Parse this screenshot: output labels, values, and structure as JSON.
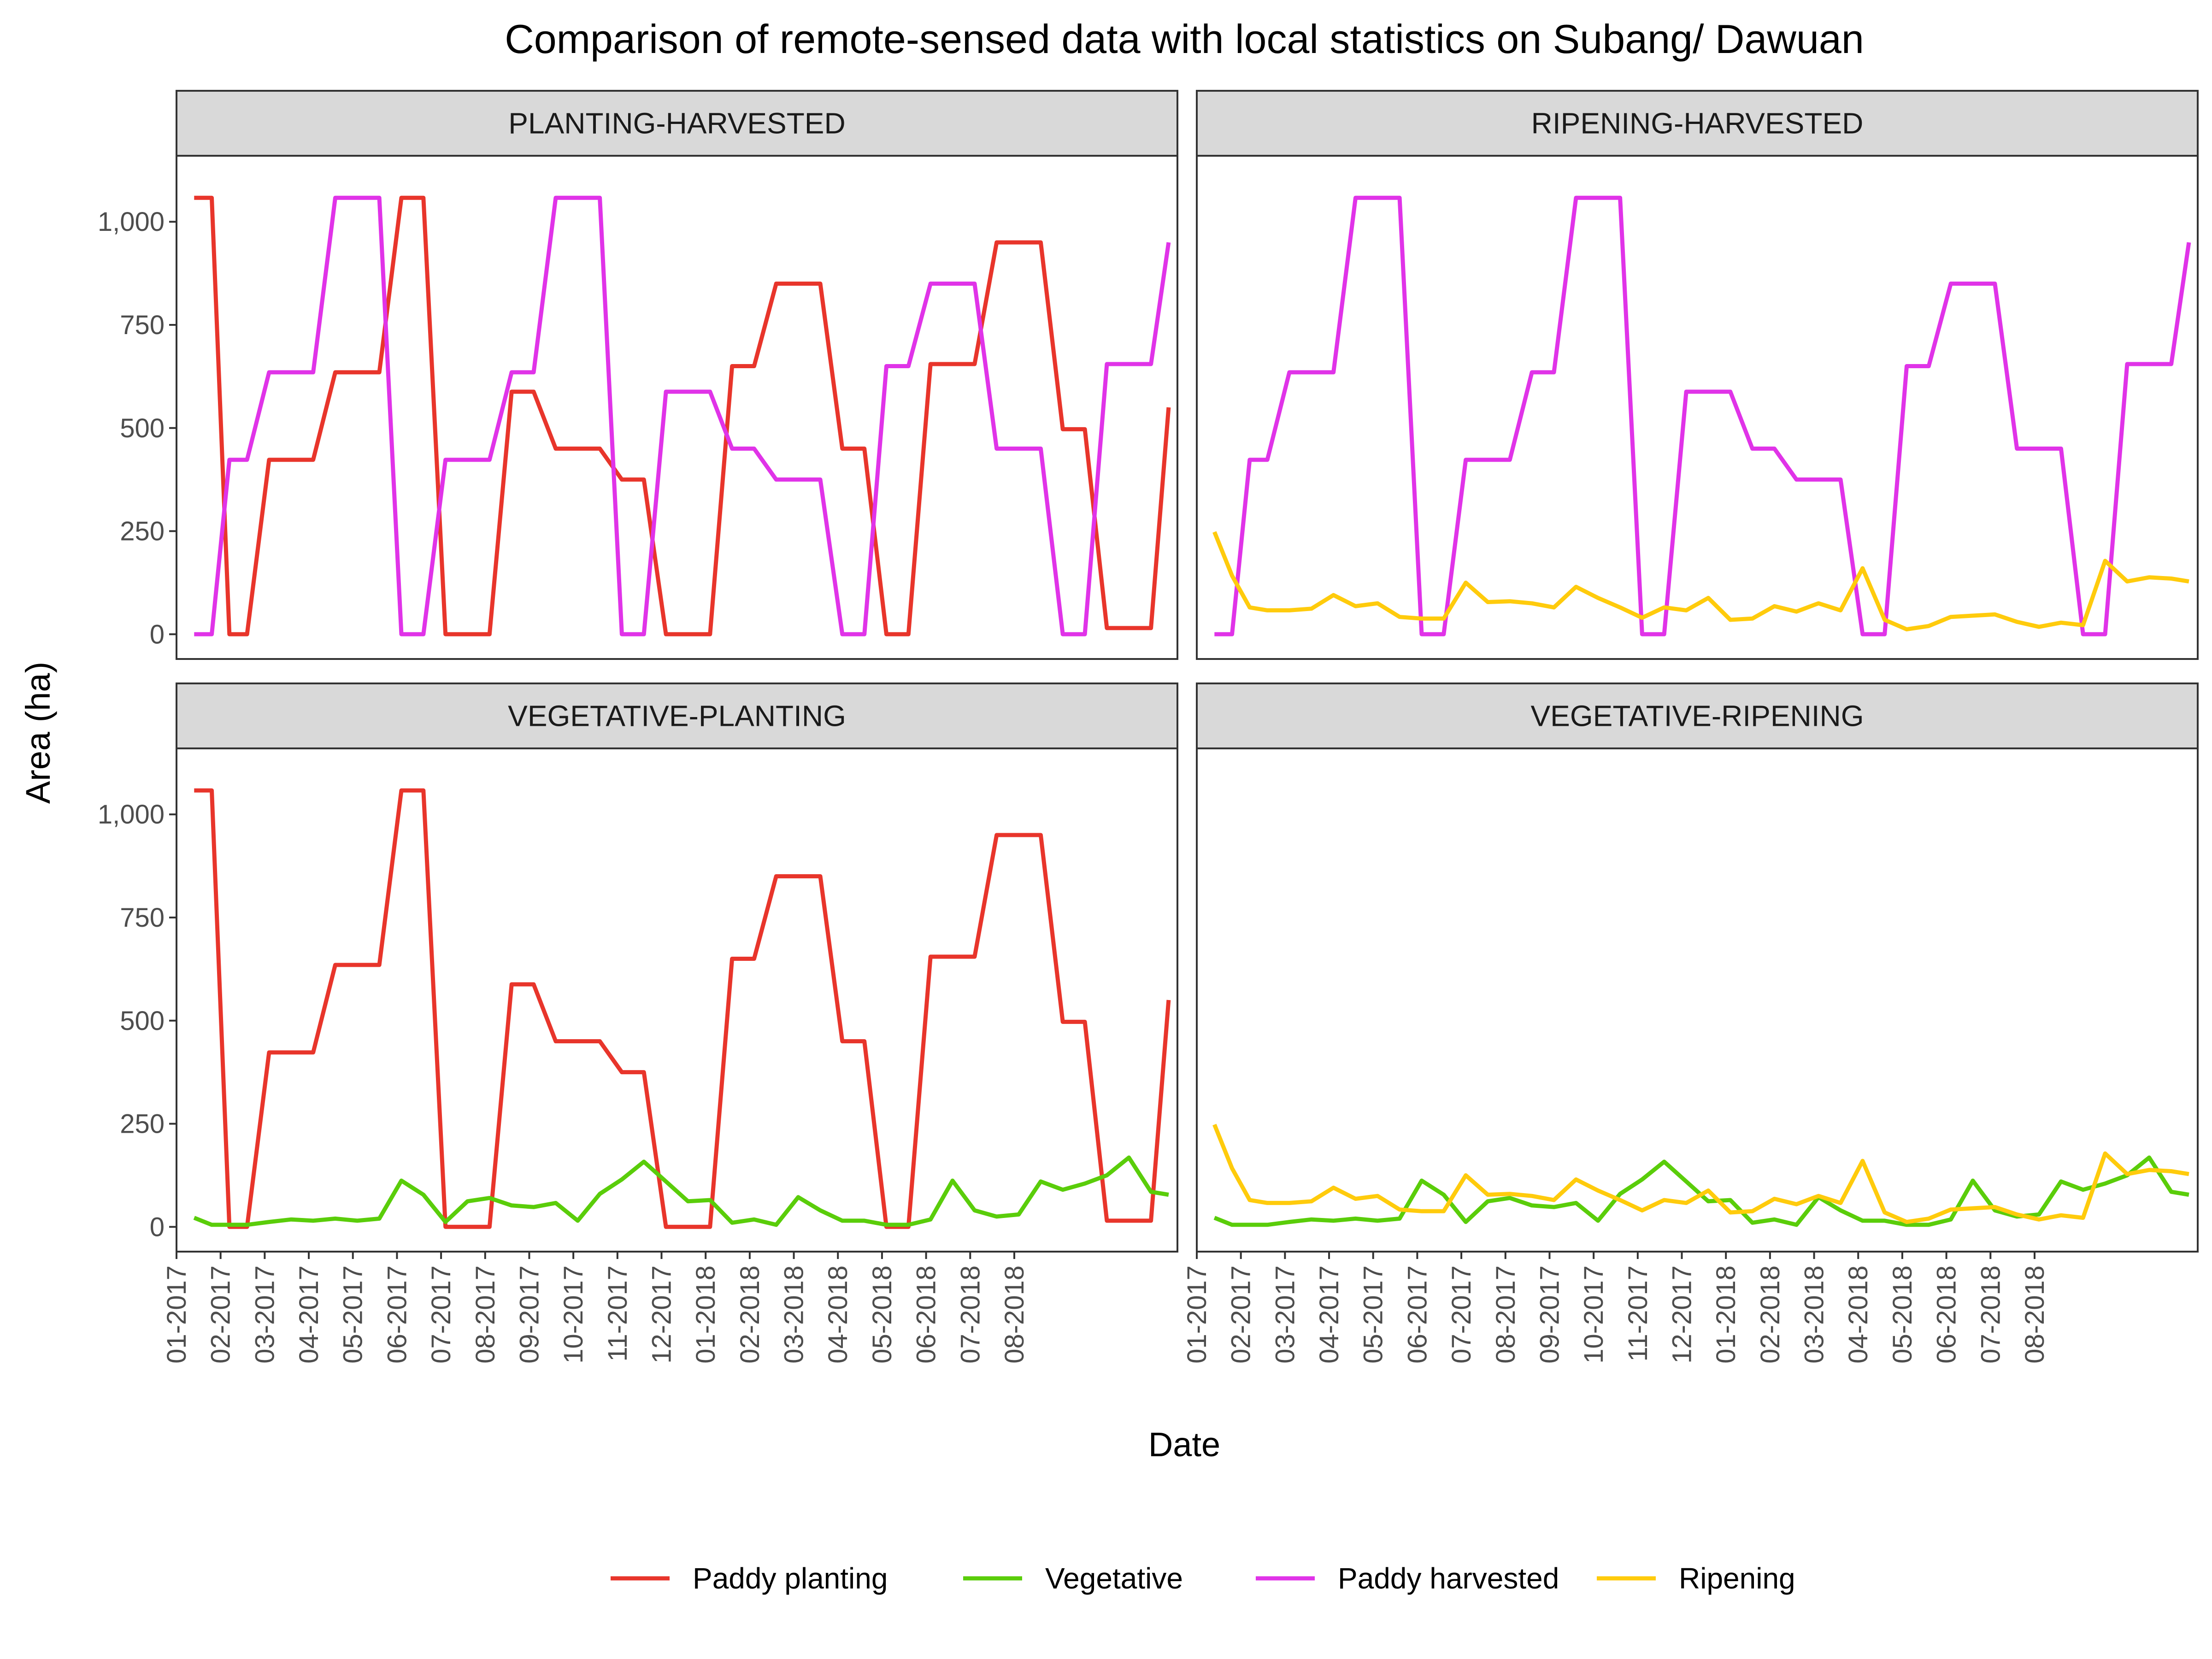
{
  "chart_data": {
    "type": "line",
    "title": "Comparison of remote-sensed data with local statistics on Subang/ Dawuan",
    "xlabel": "Date",
    "ylabel": "Area (ha)",
    "ylim": [
      -60,
      1160
    ],
    "y_ticks": [
      0,
      250,
      500,
      750,
      1000
    ],
    "y_tick_labels": [
      "0",
      "250",
      "500",
      "750",
      "1,000"
    ],
    "x_range": [
      0,
      22.7
    ],
    "x_ticks": [
      0,
      1,
      2,
      3,
      4,
      5,
      6,
      7,
      8,
      9,
      10,
      11,
      12,
      13,
      14,
      15,
      16,
      17,
      18,
      19
    ],
    "x_tick_labels": [
      "01-2017",
      "02-2017",
      "03-2017",
      "04-2017",
      "05-2017",
      "06-2017",
      "07-2017",
      "08-2017",
      "09-2017",
      "10-2017",
      "11-2017",
      "12-2017",
      "01-2018",
      "02-2018",
      "03-2018",
      "04-2018",
      "05-2018",
      "06-2018",
      "07-2018",
      "08-2018"
    ],
    "grid": false,
    "legend_position": "bottom",
    "colors": {
      "Paddy planting": "#e8352b",
      "Vegetative": "#5acd0a",
      "Paddy harvested": "#e033e8",
      "Ripening": "#ffcb0c"
    },
    "legend": [
      "Paddy planting",
      "Vegetative",
      "Paddy harvested",
      "Ripening"
    ],
    "panels": [
      {
        "name": "PLANTING-HARVESTED",
        "series": [
          "Paddy planting",
          "Paddy harvested"
        ]
      },
      {
        "name": "RIPENING-HARVESTED",
        "series": [
          "Paddy harvested",
          "Ripening"
        ]
      },
      {
        "name": "VEGETATIVE-PLANTING",
        "series": [
          "Paddy planting",
          "Vegetative"
        ]
      },
      {
        "name": "VEGETATIVE-RIPENING",
        "series": [
          "Vegetative",
          "Ripening"
        ]
      }
    ],
    "series": [
      {
        "name": "Paddy planting",
        "x": [
          0.4,
          0.8,
          1.2,
          1.6,
          2.1,
          2.6,
          3.1,
          3.6,
          4.1,
          4.6,
          5.1,
          5.6,
          6.1,
          6.6,
          7.1,
          7.6,
          8.1,
          8.6,
          9.1,
          9.6,
          10.1,
          10.6,
          11.1,
          11.6,
          12.1,
          12.6,
          13.1,
          13.6,
          14.1,
          14.6,
          15.1,
          15.6,
          16.1,
          16.6,
          17.1,
          17.6,
          18.1,
          18.6,
          19.1,
          19.6,
          20.1,
          20.6,
          21.1,
          21.6,
          22.1,
          22.5
        ],
        "values": [
          1058,
          1058,
          0,
          0,
          423,
          423,
          423,
          635,
          635,
          635,
          1058,
          1058,
          0,
          0,
          0,
          588,
          588,
          450,
          450,
          450,
          375,
          375,
          0,
          0,
          0,
          650,
          650,
          850,
          850,
          850,
          450,
          450,
          0,
          0,
          655,
          655,
          655,
          950,
          950,
          950,
          497,
          497,
          15,
          15,
          15,
          550
        ]
      },
      {
        "name": "Paddy harvested",
        "x": [
          0.4,
          0.8,
          1.2,
          1.6,
          2.1,
          2.6,
          3.1,
          3.6,
          4.1,
          4.6,
          5.1,
          5.6,
          6.1,
          6.6,
          7.1,
          7.6,
          8.1,
          8.6,
          9.1,
          9.6,
          10.1,
          10.6,
          11.1,
          11.6,
          12.1,
          12.6,
          13.1,
          13.6,
          14.1,
          14.6,
          15.1,
          15.6,
          16.1,
          16.6,
          17.1,
          17.6,
          18.1,
          18.6,
          19.1,
          19.6,
          20.1,
          20.6,
          21.1,
          21.6,
          22.1,
          22.5
        ],
        "values": [
          0,
          0,
          423,
          423,
          635,
          635,
          635,
          1058,
          1058,
          1058,
          0,
          0,
          423,
          423,
          423,
          635,
          635,
          1058,
          1058,
          1058,
          0,
          0,
          588,
          588,
          588,
          450,
          450,
          375,
          375,
          375,
          0,
          0,
          650,
          650,
          850,
          850,
          850,
          450,
          450,
          450,
          0,
          0,
          655,
          655,
          655,
          950
        ]
      },
      {
        "name": "Vegetative",
        "x": [
          0.4,
          0.8,
          1.2,
          1.6,
          2.1,
          2.6,
          3.1,
          3.6,
          4.1,
          4.6,
          5.1,
          5.6,
          6.1,
          6.6,
          7.1,
          7.6,
          8.1,
          8.6,
          9.1,
          9.6,
          10.1,
          10.6,
          11.1,
          11.6,
          12.1,
          12.6,
          13.1,
          13.6,
          14.1,
          14.6,
          15.1,
          15.6,
          16.1,
          16.6,
          17.1,
          17.6,
          18.1,
          18.6,
          19.1,
          19.6,
          20.1,
          20.6,
          21.1,
          21.6,
          22.1,
          22.5
        ],
        "values": [
          22,
          5,
          5,
          5,
          12,
          18,
          15,
          20,
          15,
          20,
          112,
          78,
          12,
          62,
          70,
          52,
          48,
          58,
          15,
          80,
          115,
          158,
          110,
          62,
          65,
          10,
          18,
          5,
          72,
          40,
          15,
          15,
          5,
          5,
          18,
          112,
          40,
          25,
          30,
          110,
          90,
          105,
          125,
          168,
          85,
          78
        ]
      },
      {
        "name": "Ripening",
        "x": [
          0.4,
          0.8,
          1.2,
          1.6,
          2.1,
          2.6,
          3.1,
          3.6,
          4.1,
          4.6,
          5.1,
          5.6,
          6.1,
          6.6,
          7.1,
          7.6,
          8.1,
          8.6,
          9.1,
          9.6,
          10.1,
          10.6,
          11.1,
          11.6,
          12.1,
          12.6,
          13.1,
          13.6,
          14.1,
          14.6,
          15.1,
          15.6,
          16.1,
          16.6,
          17.1,
          17.6,
          18.1,
          18.6,
          19.1,
          19.6,
          20.1,
          20.6,
          21.1,
          21.6,
          22.1,
          22.5
        ],
        "values": [
          248,
          142,
          65,
          58,
          58,
          62,
          95,
          68,
          75,
          42,
          38,
          38,
          125,
          78,
          80,
          75,
          65,
          115,
          88,
          65,
          40,
          65,
          58,
          88,
          35,
          38,
          68,
          55,
          75,
          58,
          160,
          35,
          12,
          20,
          42,
          45,
          48,
          30,
          18,
          28,
          22,
          178,
          128,
          138,
          135,
          128
        ]
      }
    ]
  }
}
